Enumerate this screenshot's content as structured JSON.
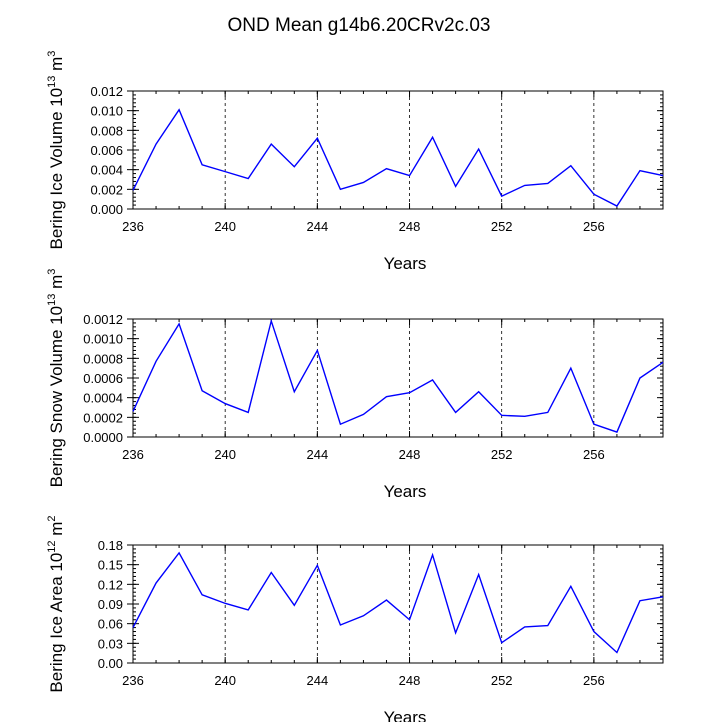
{
  "title": "OND Mean g14b6.20CRv2c.03",
  "colors": {
    "line": "#0000ff",
    "axis": "#000000",
    "grid": "#000000"
  },
  "chart_data": [
    {
      "type": "line",
      "ylabel": {
        "prefix": "Bering Ice Volume 10",
        "exp": "13",
        "unit": " m",
        "unit_exp": "3"
      },
      "xlabel": "Years",
      "xlim": [
        236,
        259
      ],
      "ylim": [
        0,
        0.012
      ],
      "xticks": [
        236,
        240,
        244,
        248,
        252,
        256
      ],
      "xtick_labels": [
        "236",
        "240",
        "244",
        "248",
        "252",
        "256"
      ],
      "yticks": [
        0,
        0.002,
        0.004,
        0.006,
        0.008,
        0.01,
        0.012
      ],
      "ytick_labels": [
        "0.000",
        "0.002",
        "0.004",
        "0.006",
        "0.008",
        "0.010",
        "0.012"
      ],
      "x": [
        236,
        237,
        238,
        239,
        240,
        241,
        242,
        243,
        244,
        245,
        246,
        247,
        248,
        249,
        250,
        251,
        252,
        253,
        254,
        255,
        256,
        257,
        258,
        259
      ],
      "values": [
        0.0019,
        0.0066,
        0.0101,
        0.0045,
        0.0038,
        0.0031,
        0.0066,
        0.0043,
        0.0072,
        0.002,
        0.0027,
        0.0041,
        0.0034,
        0.0073,
        0.0023,
        0.0061,
        0.0013,
        0.0024,
        0.0026,
        0.0044,
        0.0015,
        0.0003,
        0.0039,
        0.0034
      ]
    },
    {
      "type": "line",
      "ylabel": {
        "prefix": "Bering Snow Volume 10",
        "exp": "13",
        "unit": " m",
        "unit_exp": "3"
      },
      "xlabel": "Years",
      "xlim": [
        236,
        259
      ],
      "ylim": [
        0,
        0.0012
      ],
      "xticks": [
        236,
        240,
        244,
        248,
        252,
        256
      ],
      "xtick_labels": [
        "236",
        "240",
        "244",
        "248",
        "252",
        "256"
      ],
      "yticks": [
        0,
        0.0002,
        0.0004,
        0.0006,
        0.0008,
        0.001,
        0.0012
      ],
      "ytick_labels": [
        "0.0000",
        "0.0002",
        "0.0004",
        "0.0006",
        "0.0008",
        "0.0010",
        "0.0012"
      ],
      "x": [
        236,
        237,
        238,
        239,
        240,
        241,
        242,
        243,
        244,
        245,
        246,
        247,
        248,
        249,
        250,
        251,
        252,
        253,
        254,
        255,
        256,
        257,
        258,
        259
      ],
      "values": [
        0.00026,
        0.00077,
        0.00115,
        0.00047,
        0.00034,
        0.00025,
        0.00118,
        0.00046,
        0.00088,
        0.00013,
        0.00023,
        0.00041,
        0.00045,
        0.00058,
        0.00025,
        0.00046,
        0.00022,
        0.00021,
        0.00025,
        0.0007,
        0.00013,
        5e-05,
        0.0006,
        0.00076
      ]
    },
    {
      "type": "line",
      "ylabel": {
        "prefix": "Bering Ice Area 10",
        "exp": "12",
        "unit": " m",
        "unit_exp": "2"
      },
      "xlabel": "Years",
      "xlim": [
        236,
        259
      ],
      "ylim": [
        0,
        0.18
      ],
      "xticks": [
        236,
        240,
        244,
        248,
        252,
        256
      ],
      "xtick_labels": [
        "236",
        "240",
        "244",
        "248",
        "252",
        "256"
      ],
      "yticks": [
        0,
        0.03,
        0.06,
        0.09,
        0.12,
        0.15,
        0.18
      ],
      "ytick_labels": [
        "0.00",
        "0.03",
        "0.06",
        "0.09",
        "0.12",
        "0.15",
        "0.18"
      ],
      "x": [
        236,
        237,
        238,
        239,
        240,
        241,
        242,
        243,
        244,
        245,
        246,
        247,
        248,
        249,
        250,
        251,
        252,
        253,
        254,
        255,
        256,
        257,
        258,
        259
      ],
      "values": [
        0.054,
        0.122,
        0.168,
        0.104,
        0.091,
        0.081,
        0.138,
        0.088,
        0.149,
        0.058,
        0.072,
        0.096,
        0.066,
        0.165,
        0.046,
        0.135,
        0.031,
        0.055,
        0.057,
        0.117,
        0.048,
        0.016,
        0.095,
        0.101
      ]
    }
  ]
}
